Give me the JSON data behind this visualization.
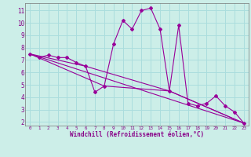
{
  "xlabel": "Windchill (Refroidissement éolien,°C)",
  "background_color": "#cceee8",
  "grid_color": "#aadddd",
  "line_color": "#990099",
  "xlim": [
    -0.5,
    23.5
  ],
  "ylim": [
    1.7,
    11.6
  ],
  "xticks": [
    0,
    1,
    2,
    3,
    4,
    5,
    6,
    7,
    8,
    9,
    10,
    11,
    12,
    13,
    14,
    15,
    16,
    17,
    18,
    19,
    20,
    21,
    22,
    23
  ],
  "yticks": [
    2,
    3,
    4,
    5,
    6,
    7,
    8,
    9,
    10,
    11
  ],
  "series1_x": [
    0,
    1,
    2,
    3,
    4,
    5,
    6,
    7,
    8,
    9,
    10,
    11,
    12,
    13,
    14,
    15,
    16,
    17,
    18,
    19,
    20,
    21,
    22,
    23
  ],
  "series1_y": [
    7.5,
    7.2,
    7.4,
    7.2,
    7.2,
    6.8,
    6.5,
    4.4,
    4.9,
    8.3,
    10.2,
    9.5,
    11.0,
    11.2,
    9.5,
    4.5,
    9.8,
    3.5,
    3.3,
    3.5,
    4.1,
    3.3,
    2.8,
    1.9
  ],
  "series2_x": [
    0,
    23
  ],
  "series2_y": [
    7.5,
    1.9
  ],
  "series3_x": [
    0,
    8,
    15,
    23
  ],
  "series3_y": [
    7.5,
    4.9,
    4.5,
    1.9
  ],
  "series4_x": [
    0,
    6,
    15,
    23
  ],
  "series4_y": [
    7.5,
    6.5,
    4.5,
    1.9
  ]
}
